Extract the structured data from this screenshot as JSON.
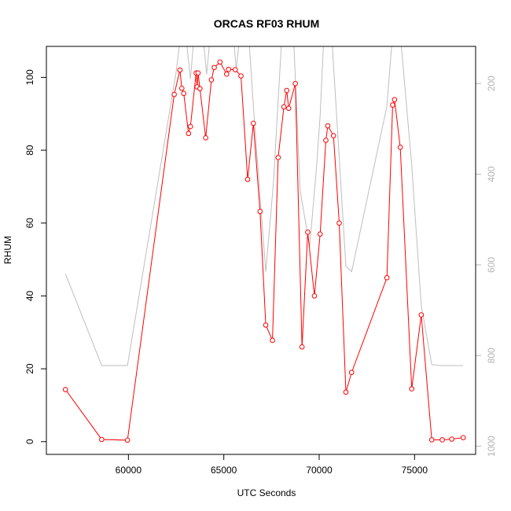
{
  "chart_data": {
    "type": "line",
    "title": "ORCAS RF03 RHUM",
    "xlabel": "UTC Seconds",
    "ylabel": "RHUM",
    "xlim": [
      55700,
      78200
    ],
    "ylim": [
      -3.5,
      108.5
    ],
    "x_ticks": [
      60000,
      65000,
      70000,
      75000
    ],
    "x_tick_labels": [
      "60000",
      "65000",
      "70000",
      "75000"
    ],
    "y_ticks": [
      0,
      20,
      40,
      60,
      80,
      100
    ],
    "y_tick_labels": [
      "0",
      "20",
      "40",
      "60",
      "80",
      "100"
    ],
    "y2lim": [
      1018,
      118
    ],
    "y2_ticks": [
      200,
      400,
      600,
      800,
      1000
    ],
    "y2_tick_labels": [
      "200",
      "400",
      "600",
      "800",
      "1000"
    ],
    "colors": {
      "rhum": "#ff0000",
      "secondary": "#bebebe",
      "right_axis": "#b4b4b4",
      "frame": "#000000"
    },
    "series": [
      {
        "values": [
          {
            "x": 56700,
            "y": 14.3
          },
          {
            "x": 58600,
            "y": 0.6
          },
          {
            "x": 59950,
            "y": 0.4
          },
          {
            "x": 62400,
            "y": 95.3
          },
          {
            "x": 62700,
            "y": 102.0
          },
          {
            "x": 62800,
            "y": 97.0
          },
          {
            "x": 62900,
            "y": 95.6
          },
          {
            "x": 63150,
            "y": 84.6
          },
          {
            "x": 63250,
            "y": 86.5
          },
          {
            "x": 63550,
            "y": 101.2
          },
          {
            "x": 63600,
            "y": 97.4
          },
          {
            "x": 63650,
            "y": 101.2
          },
          {
            "x": 63750,
            "y": 96.9
          },
          {
            "x": 64050,
            "y": 83.4
          },
          {
            "x": 64350,
            "y": 99.3
          },
          {
            "x": 64500,
            "y": 102.7
          },
          {
            "x": 64800,
            "y": 104.2
          },
          {
            "x": 65150,
            "y": 100.9
          },
          {
            "x": 65250,
            "y": 102.2
          },
          {
            "x": 65600,
            "y": 102.1
          },
          {
            "x": 65900,
            "y": 100.4
          },
          {
            "x": 66250,
            "y": 72.0
          },
          {
            "x": 66550,
            "y": 87.4
          },
          {
            "x": 66900,
            "y": 63.2
          },
          {
            "x": 67200,
            "y": 32.0
          },
          {
            "x": 67550,
            "y": 27.8
          },
          {
            "x": 67850,
            "y": 78.0
          },
          {
            "x": 68150,
            "y": 91.9
          },
          {
            "x": 68300,
            "y": 96.4
          },
          {
            "x": 68400,
            "y": 91.5
          },
          {
            "x": 68750,
            "y": 98.3
          },
          {
            "x": 69100,
            "y": 26.0
          },
          {
            "x": 69400,
            "y": 57.5
          },
          {
            "x": 69750,
            "y": 40.0
          },
          {
            "x": 70050,
            "y": 57.0
          },
          {
            "x": 70350,
            "y": 82.7
          },
          {
            "x": 70450,
            "y": 86.7
          },
          {
            "x": 70750,
            "y": 84.0
          },
          {
            "x": 71050,
            "y": 60.0
          },
          {
            "x": 71400,
            "y": 13.6
          },
          {
            "x": 71700,
            "y": 19.0
          },
          {
            "x": 73550,
            "y": 45.0
          },
          {
            "x": 73850,
            "y": 92.4
          },
          {
            "x": 73950,
            "y": 93.9
          },
          {
            "x": 74250,
            "y": 80.8
          },
          {
            "x": 74850,
            "y": 14.5
          },
          {
            "x": 75350,
            "y": 34.8
          },
          {
            "x": 75900,
            "y": 0.5
          },
          {
            "x": 76450,
            "y": 0.5
          },
          {
            "x": 76950,
            "y": 0.7
          },
          {
            "x": 77550,
            "y": 1.1
          }
        ]
      },
      {
        "axis": "right",
        "values": [
          {
            "x": 56700,
            "y": 620
          },
          {
            "x": 58600,
            "y": 822
          },
          {
            "x": 59950,
            "y": 822
          },
          {
            "x": 62500,
            "y": 175
          },
          {
            "x": 62750,
            "y": 90
          },
          {
            "x": 63000,
            "y": 90
          },
          {
            "x": 63250,
            "y": 190
          },
          {
            "x": 63450,
            "y": 90
          },
          {
            "x": 63900,
            "y": 90
          },
          {
            "x": 64100,
            "y": 180
          },
          {
            "x": 64300,
            "y": 90
          },
          {
            "x": 65500,
            "y": 90
          },
          {
            "x": 65650,
            "y": 170
          },
          {
            "x": 65850,
            "y": 90
          },
          {
            "x": 66300,
            "y": 90
          },
          {
            "x": 66600,
            "y": 280
          },
          {
            "x": 67200,
            "y": 615
          },
          {
            "x": 67600,
            "y": 420
          },
          {
            "x": 68050,
            "y": 90
          },
          {
            "x": 68650,
            "y": 90
          },
          {
            "x": 69000,
            "y": 435
          },
          {
            "x": 69500,
            "y": 560
          },
          {
            "x": 69850,
            "y": 390
          },
          {
            "x": 70050,
            "y": 270
          },
          {
            "x": 70250,
            "y": 90
          },
          {
            "x": 70650,
            "y": 90
          },
          {
            "x": 71400,
            "y": 603
          },
          {
            "x": 71700,
            "y": 615
          },
          {
            "x": 73550,
            "y": 250
          },
          {
            "x": 73850,
            "y": 90
          },
          {
            "x": 74250,
            "y": 90
          },
          {
            "x": 74850,
            "y": 380
          },
          {
            "x": 75350,
            "y": 690
          },
          {
            "x": 75900,
            "y": 820
          },
          {
            "x": 76450,
            "y": 822
          },
          {
            "x": 77550,
            "y": 822
          }
        ]
      }
    ]
  }
}
